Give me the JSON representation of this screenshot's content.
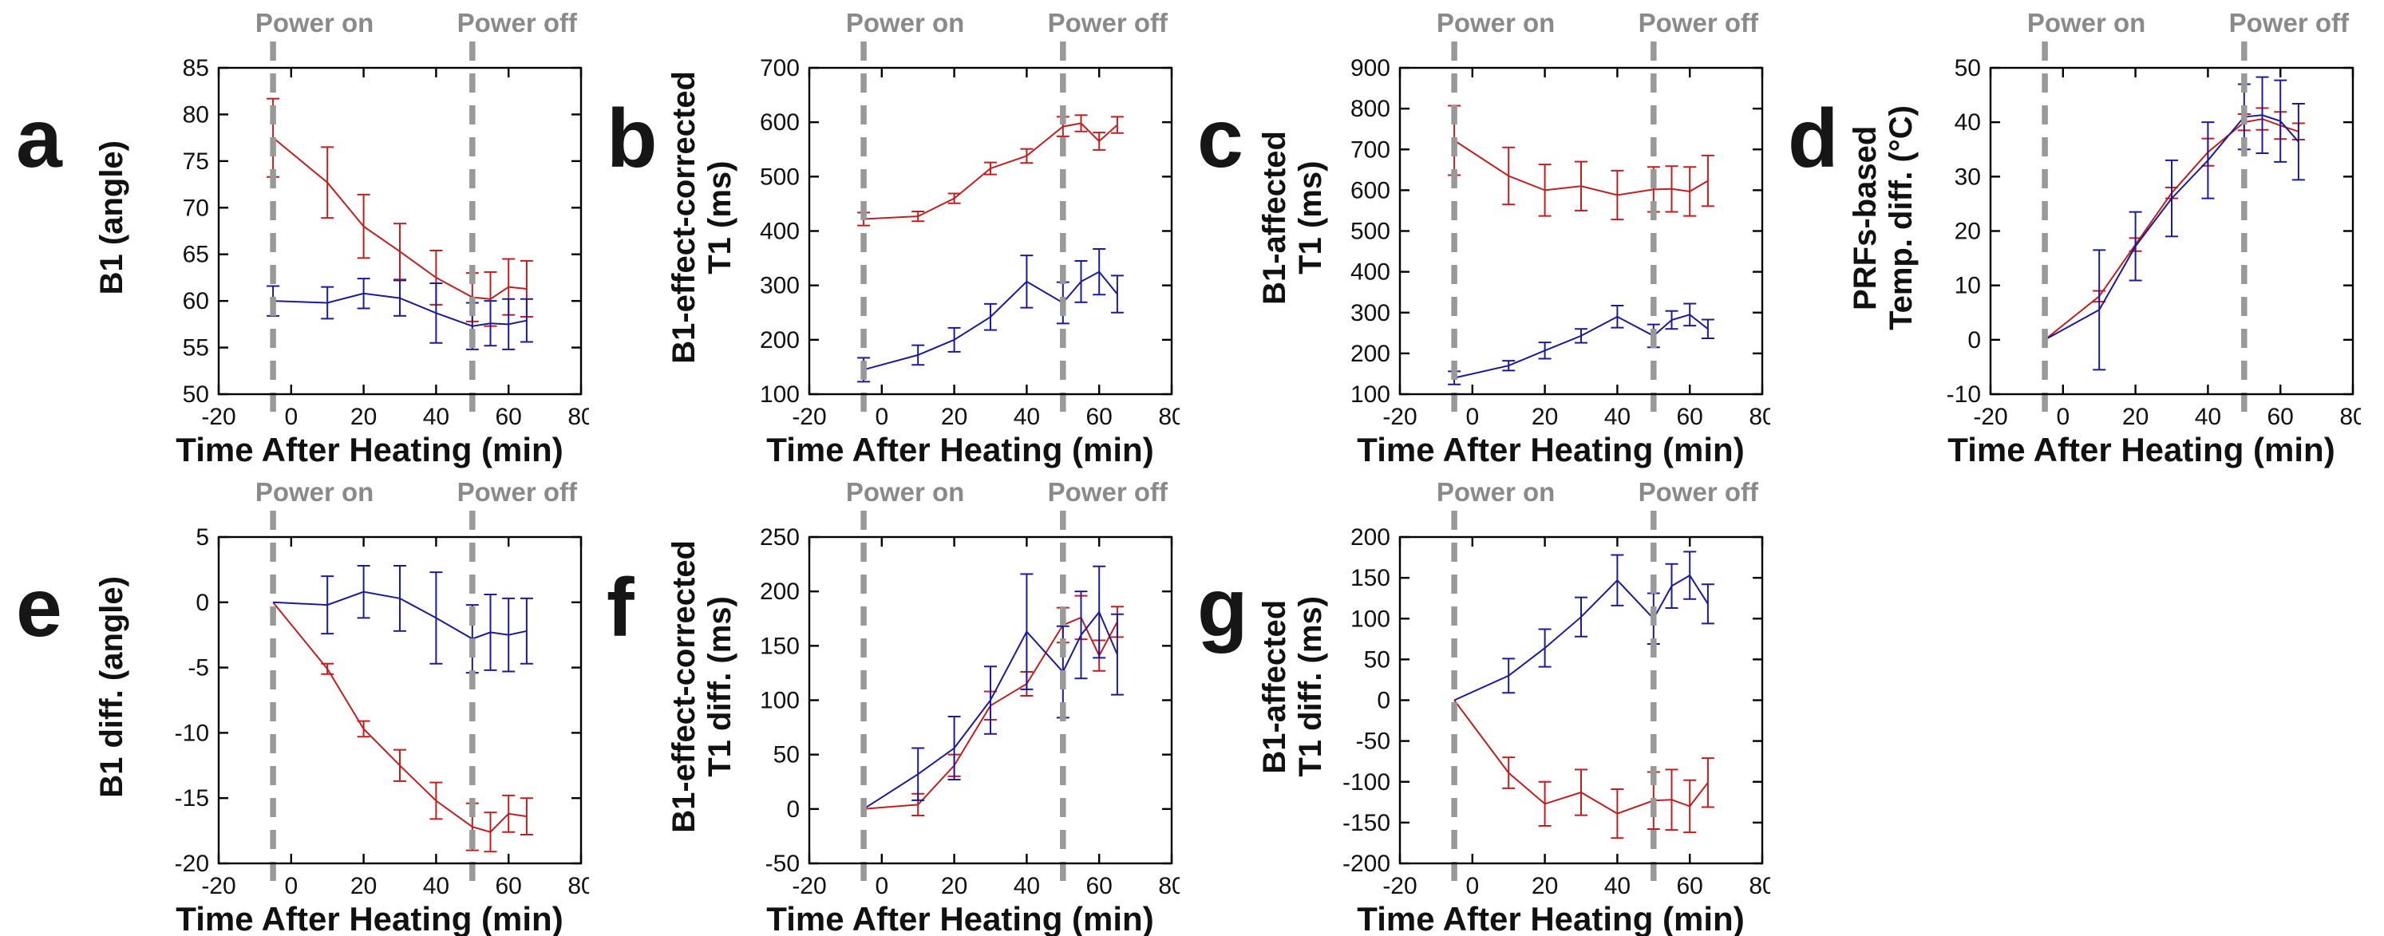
{
  "figure": {
    "background": "#ffffff",
    "power_on_label": "Power on",
    "power_off_label": "Power off",
    "xlabel": "Time After Heating (min)",
    "colors": {
      "red_series": "#c01f1f",
      "blue_series": "#1b1b96",
      "dashed_line": "#999999",
      "power_text": "#8a8a8a",
      "axis": "#000000"
    }
  },
  "chart_data": [
    {
      "id": "a",
      "panel_letter": "a",
      "type": "line",
      "xlabel": "Time After Heating (min)",
      "ylabel": "B1 (angle)",
      "xlim": [
        -20,
        80
      ],
      "ylim": [
        50,
        85
      ],
      "xticks": [
        -20,
        0,
        20,
        40,
        60,
        80
      ],
      "yticks": [
        50,
        55,
        60,
        65,
        70,
        75,
        80,
        85
      ],
      "annotations": {
        "power_on_x": -5,
        "power_off_x": 50
      },
      "x": [
        -5,
        10,
        20,
        30,
        40,
        50,
        55,
        60,
        65
      ],
      "series": [
        {
          "name": "red",
          "color": "#c01f1f",
          "values": [
            77.5,
            72.7,
            68.0,
            65.3,
            62.5,
            60.4,
            60.2,
            61.5,
            61.3
          ],
          "errors": [
            4.2,
            3.8,
            3.4,
            3.0,
            2.9,
            2.6,
            2.9,
            3.0,
            3.0
          ]
        },
        {
          "name": "blue",
          "color": "#1b1b96",
          "values": [
            60.0,
            59.8,
            60.8,
            60.3,
            58.7,
            57.3,
            57.6,
            57.5,
            57.9
          ],
          "errors": [
            1.6,
            1.7,
            1.6,
            1.9,
            3.2,
            2.5,
            2.4,
            2.7,
            2.3
          ]
        }
      ]
    },
    {
      "id": "b",
      "panel_letter": "b",
      "type": "line",
      "xlabel": "Time After Heating (min)",
      "ylabel": "B1-effect-corrected\nT1 (ms)",
      "xlim": [
        -20,
        80
      ],
      "ylim": [
        100,
        700
      ],
      "xticks": [
        -20,
        0,
        20,
        40,
        60,
        80
      ],
      "yticks": [
        100,
        200,
        300,
        400,
        500,
        600,
        700
      ],
      "annotations": {
        "power_on_x": -5,
        "power_off_x": 50
      },
      "x": [
        -5,
        10,
        20,
        30,
        40,
        50,
        55,
        60,
        65
      ],
      "series": [
        {
          "name": "red",
          "color": "#c01f1f",
          "values": [
            422,
            427,
            460,
            515,
            538,
            592,
            598,
            565,
            595
          ],
          "errors": [
            12,
            9,
            9,
            11,
            13,
            18,
            15,
            16,
            15
          ]
        },
        {
          "name": "blue",
          "color": "#1b1b96",
          "values": [
            145,
            172,
            200,
            242,
            307,
            268,
            307,
            325,
            284
          ],
          "errors": [
            22,
            18,
            22,
            24,
            48,
            38,
            38,
            42,
            34
          ]
        }
      ]
    },
    {
      "id": "c",
      "panel_letter": "c",
      "type": "line",
      "xlabel": "Time After Heating (min)",
      "ylabel": "B1-affected\nT1 (ms)",
      "xlim": [
        -20,
        80
      ],
      "ylim": [
        100,
        900
      ],
      "xticks": [
        -20,
        0,
        20,
        40,
        60,
        80
      ],
      "yticks": [
        100,
        200,
        300,
        400,
        500,
        600,
        700,
        800,
        900
      ],
      "annotations": {
        "power_on_x": -5,
        "power_off_x": 50
      },
      "x": [
        -5,
        10,
        20,
        30,
        40,
        50,
        55,
        60,
        65
      ],
      "series": [
        {
          "name": "red",
          "color": "#c01f1f",
          "values": [
            722,
            635,
            600,
            610,
            588,
            602,
            603,
            597,
            623
          ],
          "errors": [
            85,
            70,
            63,
            60,
            60,
            55,
            56,
            60,
            62
          ]
        },
        {
          "name": "blue",
          "color": "#1b1b96",
          "values": [
            140,
            170,
            207,
            243,
            290,
            243,
            282,
            295,
            260
          ],
          "errors": [
            16,
            12,
            20,
            17,
            27,
            28,
            22,
            27,
            23
          ]
        }
      ]
    },
    {
      "id": "d",
      "panel_letter": "d",
      "type": "line",
      "xlabel": "Time After Heating (min)",
      "ylabel": "PRFs-based\nTemp. diff. (°C)",
      "xlim": [
        -20,
        80
      ],
      "ylim": [
        -10,
        50
      ],
      "xticks": [
        -20,
        0,
        20,
        40,
        60,
        80
      ],
      "yticks": [
        -10,
        0,
        10,
        20,
        30,
        40,
        50
      ],
      "annotations": {
        "power_on_x": -5,
        "power_off_x": 50
      },
      "x": [
        -5,
        10,
        20,
        30,
        40,
        50,
        55,
        60,
        65
      ],
      "series": [
        {
          "name": "red",
          "color": "#c01f1f",
          "values": [
            0,
            8.0,
            17.5,
            27.0,
            34.5,
            40.0,
            40.6,
            39.4,
            38.3
          ],
          "errors": [
            0,
            1.0,
            1.2,
            1.0,
            2.5,
            1.5,
            2.0,
            2.5,
            1.5
          ]
        },
        {
          "name": "blue",
          "color": "#1b1b96",
          "values": [
            0,
            5.5,
            17.2,
            26.0,
            33.0,
            41.0,
            41.3,
            40.2,
            36.4
          ],
          "errors": [
            0,
            11.0,
            6.3,
            7.0,
            7.0,
            6.0,
            7.0,
            7.5,
            7.0
          ]
        }
      ]
    },
    {
      "id": "e",
      "panel_letter": "e",
      "type": "line",
      "xlabel": "Time After Heating (min)",
      "ylabel": "B1 diff. (angle)",
      "xlim": [
        -20,
        80
      ],
      "ylim": [
        -20,
        5
      ],
      "xticks": [
        -20,
        0,
        20,
        40,
        60,
        80
      ],
      "yticks": [
        -20,
        -15,
        -10,
        -5,
        0,
        5
      ],
      "annotations": {
        "power_on_x": -5,
        "power_off_x": 50
      },
      "x": [
        -5,
        10,
        20,
        30,
        40,
        50,
        55,
        60,
        65
      ],
      "series": [
        {
          "name": "red",
          "color": "#c01f1f",
          "values": [
            0,
            -5.1,
            -9.7,
            -12.5,
            -15.2,
            -17.2,
            -17.6,
            -16.2,
            -16.4
          ],
          "errors": [
            0,
            0.4,
            0.6,
            1.2,
            1.4,
            1.8,
            1.5,
            1.4,
            1.4
          ]
        },
        {
          "name": "blue",
          "color": "#1b1b96",
          "values": [
            0,
            -0.2,
            0.8,
            0.3,
            -1.2,
            -2.8,
            -2.3,
            -2.5,
            -2.2
          ],
          "errors": [
            0,
            2.2,
            2.0,
            2.5,
            3.5,
            2.6,
            2.9,
            2.8,
            2.5
          ]
        }
      ]
    },
    {
      "id": "f",
      "panel_letter": "f",
      "type": "line",
      "xlabel": "Time After Heating (min)",
      "ylabel": "B1-effect-corrected\nT1 diff. (ms)",
      "xlim": [
        -20,
        80
      ],
      "ylim": [
        -50,
        250
      ],
      "xticks": [
        -20,
        0,
        20,
        40,
        60,
        80
      ],
      "yticks": [
        -50,
        0,
        50,
        100,
        150,
        200,
        250
      ],
      "annotations": {
        "power_on_x": -5,
        "power_off_x": 50
      },
      "x": [
        -5,
        10,
        20,
        30,
        40,
        50,
        55,
        60,
        65
      ],
      "series": [
        {
          "name": "red",
          "color": "#c01f1f",
          "values": [
            0,
            4,
            40,
            95,
            115,
            169,
            176,
            141,
            172
          ],
          "errors": [
            0,
            10,
            10,
            13,
            11,
            16,
            20,
            14,
            14
          ]
        },
        {
          "name": "blue",
          "color": "#1b1b96",
          "values": [
            0,
            32,
            56,
            100,
            163,
            126,
            160,
            181,
            142
          ],
          "errors": [
            0,
            24,
            29,
            31,
            53,
            42,
            40,
            42,
            37
          ]
        }
      ]
    },
    {
      "id": "g",
      "panel_letter": "g",
      "type": "line",
      "xlabel": "Time After Heating (min)",
      "ylabel": "B1-affected\nT1 diff. (ms)",
      "xlim": [
        -20,
        80
      ],
      "ylim": [
        -200,
        200
      ],
      "xticks": [
        -20,
        0,
        20,
        40,
        60,
        80
      ],
      "yticks": [
        -200,
        -150,
        -100,
        -50,
        0,
        50,
        100,
        150,
        200
      ],
      "annotations": {
        "power_on_x": -5,
        "power_off_x": 50
      },
      "x": [
        -5,
        10,
        20,
        30,
        40,
        50,
        55,
        60,
        65
      ],
      "series": [
        {
          "name": "red",
          "color": "#c01f1f",
          "values": [
            0,
            -89,
            -127,
            -113,
            -139,
            -123,
            -122,
            -130,
            -101
          ],
          "errors": [
            0,
            19,
            27,
            28,
            30,
            35,
            37,
            32,
            30
          ]
        },
        {
          "name": "blue",
          "color": "#1b1b96",
          "values": [
            0,
            30,
            64,
            102,
            147,
            100,
            140,
            153,
            118
          ],
          "errors": [
            0,
            21,
            23,
            24,
            31,
            31,
            27,
            29,
            24
          ]
        }
      ]
    }
  ]
}
